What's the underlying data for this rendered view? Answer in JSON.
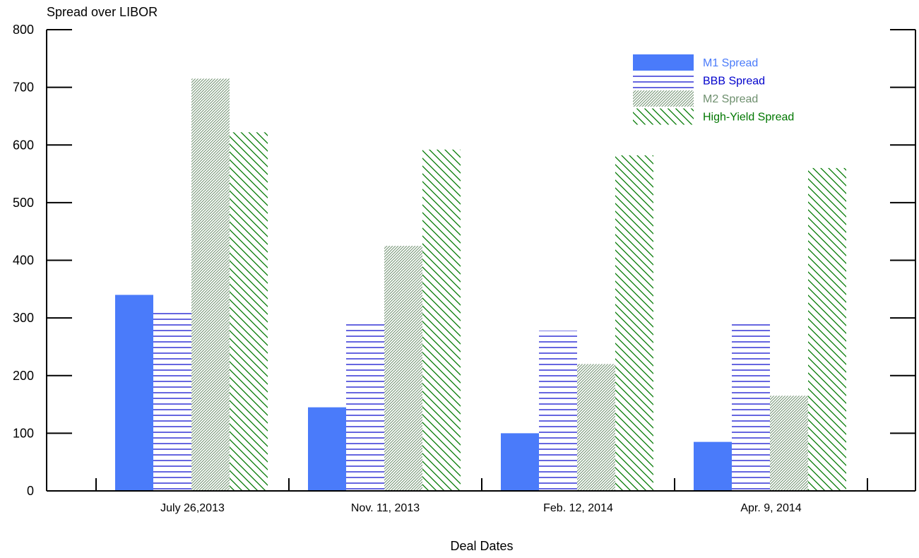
{
  "chart_data": {
    "type": "bar",
    "title": "",
    "ylabel": "Spread over LIBOR",
    "xlabel": "Deal Dates",
    "ylim": [
      0,
      800
    ],
    "yticks": [
      0,
      100,
      200,
      300,
      400,
      500,
      600,
      700,
      800
    ],
    "categories": [
      "July 26,2013",
      "Nov. 11, 2013",
      "Feb. 12, 2014",
      "Apr. 9, 2014"
    ],
    "series": [
      {
        "name": "M1 Spread",
        "values": [
          340,
          145,
          100,
          85
        ],
        "color": "#4a7bfa",
        "pattern": "solid"
      },
      {
        "name": "BBB Spread",
        "values": [
          313,
          290,
          278,
          290
        ],
        "color": "#0000cc",
        "pattern": "horizontal-lines"
      },
      {
        "name": "M2 Spread",
        "values": [
          715,
          425,
          220,
          165
        ],
        "color": "#6e8f6e",
        "pattern": "dense-diagonal"
      },
      {
        "name": "High-Yield Spread",
        "values": [
          622,
          592,
          582,
          560
        ],
        "color": "#007700",
        "pattern": "sparse-diagonal"
      }
    ],
    "grid": false,
    "legend_position": "top-right"
  }
}
